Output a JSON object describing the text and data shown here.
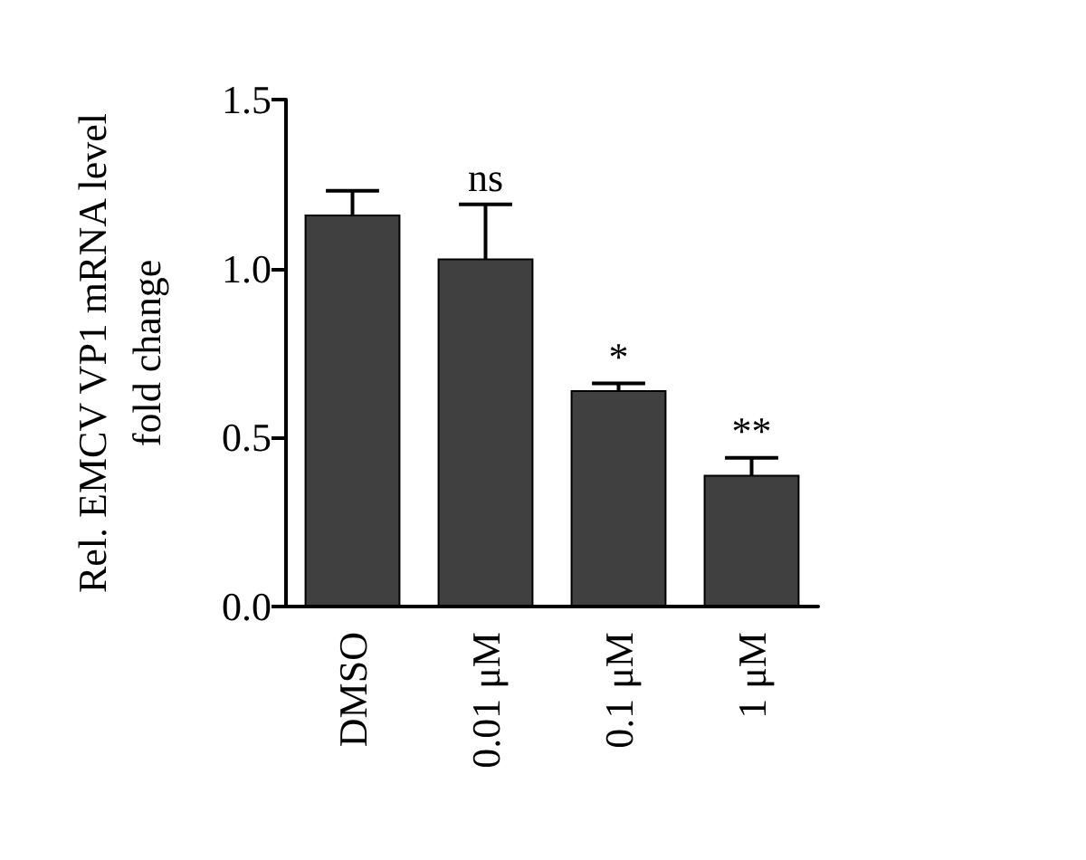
{
  "chart_data": {
    "type": "bar",
    "ylabel": "Rel. EMCV VP1 mRNA level\nfold change",
    "categories": [
      "DMSO",
      "0.01 μM",
      "0.1 μM",
      "1 μM"
    ],
    "values": [
      1.16,
      1.03,
      0.64,
      0.39
    ],
    "errors": [
      0.07,
      0.16,
      0.02,
      0.05
    ],
    "color": "#404040",
    "ylim": [
      0,
      1.5
    ],
    "yticks": [
      {
        "value": 0,
        "label": "0.0"
      },
      {
        "value": 0.5,
        "label": "0.5"
      },
      {
        "value": 1,
        "label": "1.0"
      },
      {
        "value": 1.5,
        "label": "1.5"
      }
    ],
    "grid": false,
    "annotations": [
      {
        "text": "ns",
        "x": "0.01 μM",
        "y": 1.19
      },
      {
        "text": "*",
        "x": "0.1 μM",
        "y": 0.66
      },
      {
        "text": "**",
        "x": "1 μM",
        "y": 0.44
      }
    ]
  }
}
